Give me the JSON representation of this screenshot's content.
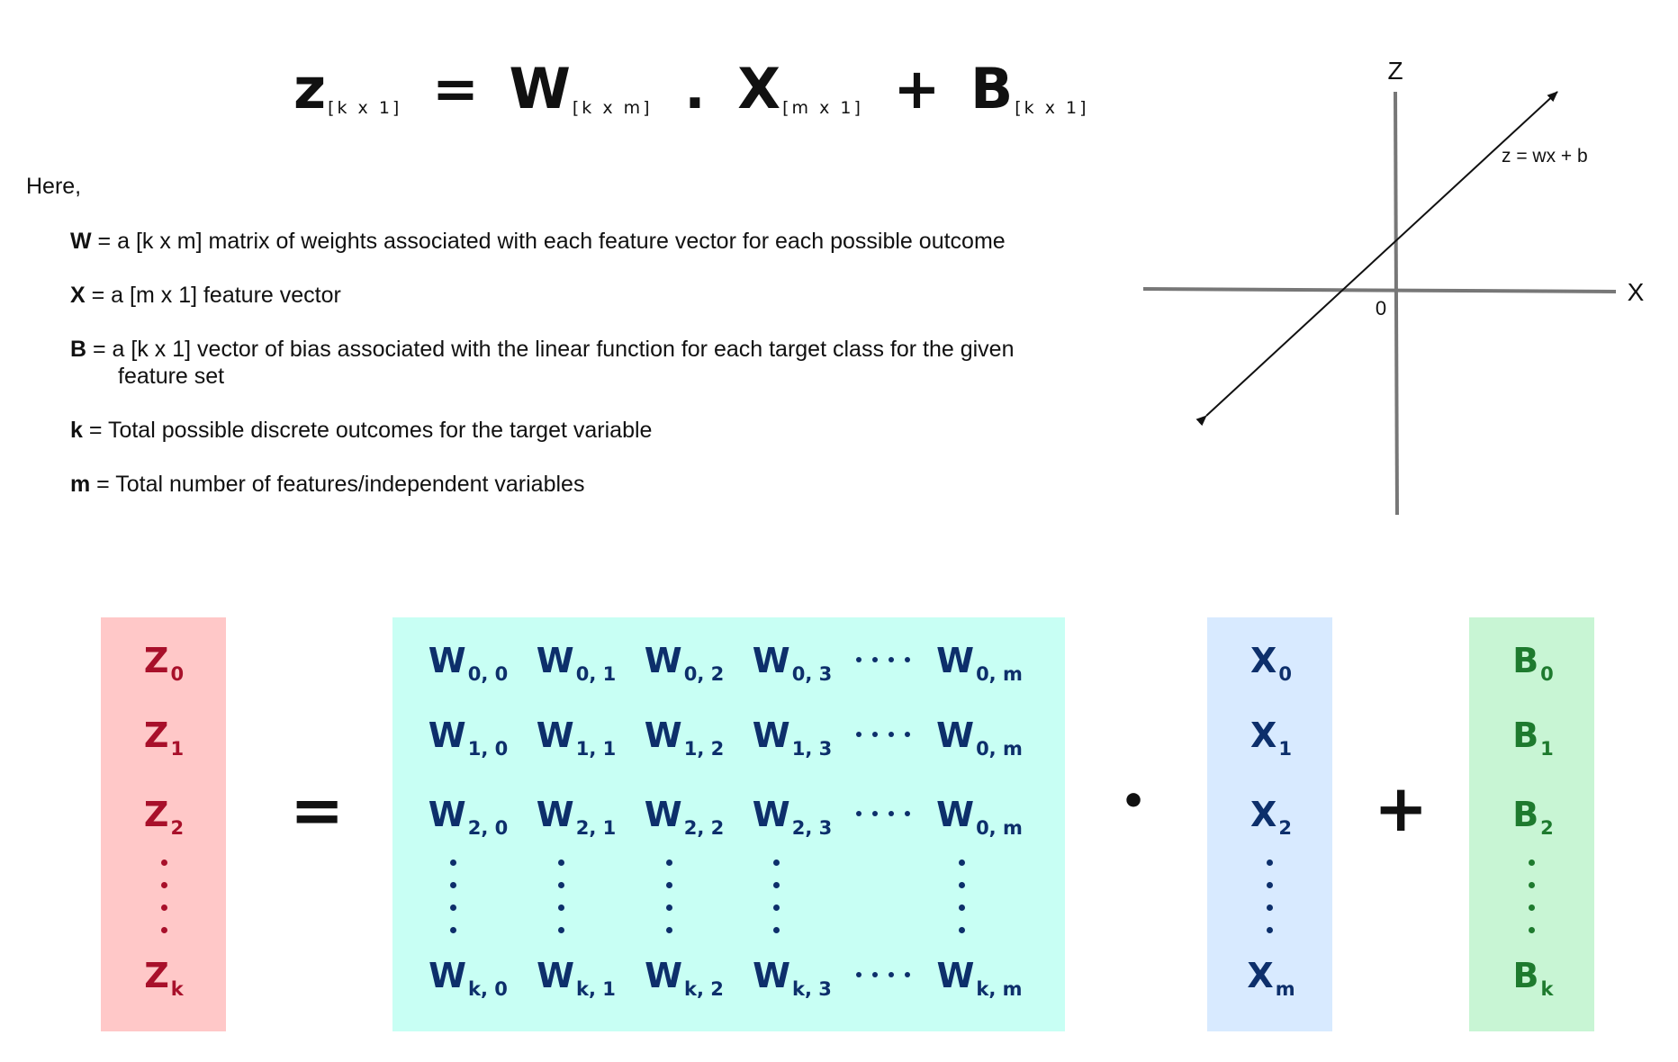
{
  "equation": {
    "z": "z",
    "z_sub": "[k x 1]",
    "eq": "=",
    "w": "W",
    "w_sub": "[k x m]",
    "dot": ".",
    "x": "X",
    "x_sub": "[m x 1]",
    "plus": "+",
    "b": "B",
    "b_sub": "[k x 1]"
  },
  "here": "Here,",
  "definitions": [
    {
      "sym": "W",
      "text": " = a  [k x m] matrix of weights associated with each feature vector for each possible outcome",
      "cont": ""
    },
    {
      "sym": "X",
      "text": "  = a [m x 1] feature vector",
      "cont": ""
    },
    {
      "sym": "B",
      "text": "  = a [k x 1] vector of bias associated with the linear function for each target class for the given",
      "cont": "feature set"
    },
    {
      "sym": "k",
      "text": " = Total possible discrete outcomes for the target variable",
      "cont": ""
    },
    {
      "sym": "m",
      "text": " = Total number of features/independent variables",
      "cont": ""
    }
  ],
  "axes": {
    "z_label": "Z",
    "x_label": "X",
    "origin_label": "0",
    "line_label": "z = wx + b"
  },
  "matrix": {
    "equals": "=",
    "dot": "•",
    "plus": "+",
    "z": [
      {
        "b": "Z",
        "s": "0"
      },
      {
        "b": "Z",
        "s": "1"
      },
      {
        "b": "Z",
        "s": "2"
      },
      {
        "b": "Z",
        "s": "k"
      }
    ],
    "x": [
      {
        "b": "X",
        "s": "0"
      },
      {
        "b": "X",
        "s": "1"
      },
      {
        "b": "X",
        "s": "2"
      },
      {
        "b": "X",
        "s": "m"
      }
    ],
    "bias": [
      {
        "b": "B",
        "s": "0"
      },
      {
        "b": "B",
        "s": "1"
      },
      {
        "b": "B",
        "s": "2"
      },
      {
        "b": "B",
        "s": "k"
      }
    ],
    "w_rows": [
      [
        {
          "b": "W",
          "s": "0, 0"
        },
        {
          "b": "W",
          "s": "0, 1"
        },
        {
          "b": "W",
          "s": "0, 2"
        },
        {
          "b": "W",
          "s": "0, 3"
        },
        {
          "b": "W",
          "s": "0, m"
        }
      ],
      [
        {
          "b": "W",
          "s": "1, 0"
        },
        {
          "b": "W",
          "s": "1, 1"
        },
        {
          "b": "W",
          "s": "1, 2"
        },
        {
          "b": "W",
          "s": "1, 3"
        },
        {
          "b": "W",
          "s": "0, m"
        }
      ],
      [
        {
          "b": "W",
          "s": "2, 0"
        },
        {
          "b": "W",
          "s": "2, 1"
        },
        {
          "b": "W",
          "s": "2, 2"
        },
        {
          "b": "W",
          "s": "2, 3"
        },
        {
          "b": "W",
          "s": "0, m"
        }
      ],
      [
        {
          "b": "W",
          "s": "k, 0"
        },
        {
          "b": "W",
          "s": "k, 1"
        },
        {
          "b": "W",
          "s": "k, 2"
        },
        {
          "b": "W",
          "s": "k, 3"
        },
        {
          "b": "W",
          "s": "k, m"
        }
      ]
    ]
  },
  "colors": {
    "z_box": "#ffc8c8",
    "w_box": "#c8fff4",
    "x_box": "#d8eaff",
    "b_box": "#c8f5d4",
    "z_text": "#a8102a",
    "w_text": "#0d2f6b",
    "x_text": "#0d2f6b",
    "b_text": "#1e7a2e"
  }
}
